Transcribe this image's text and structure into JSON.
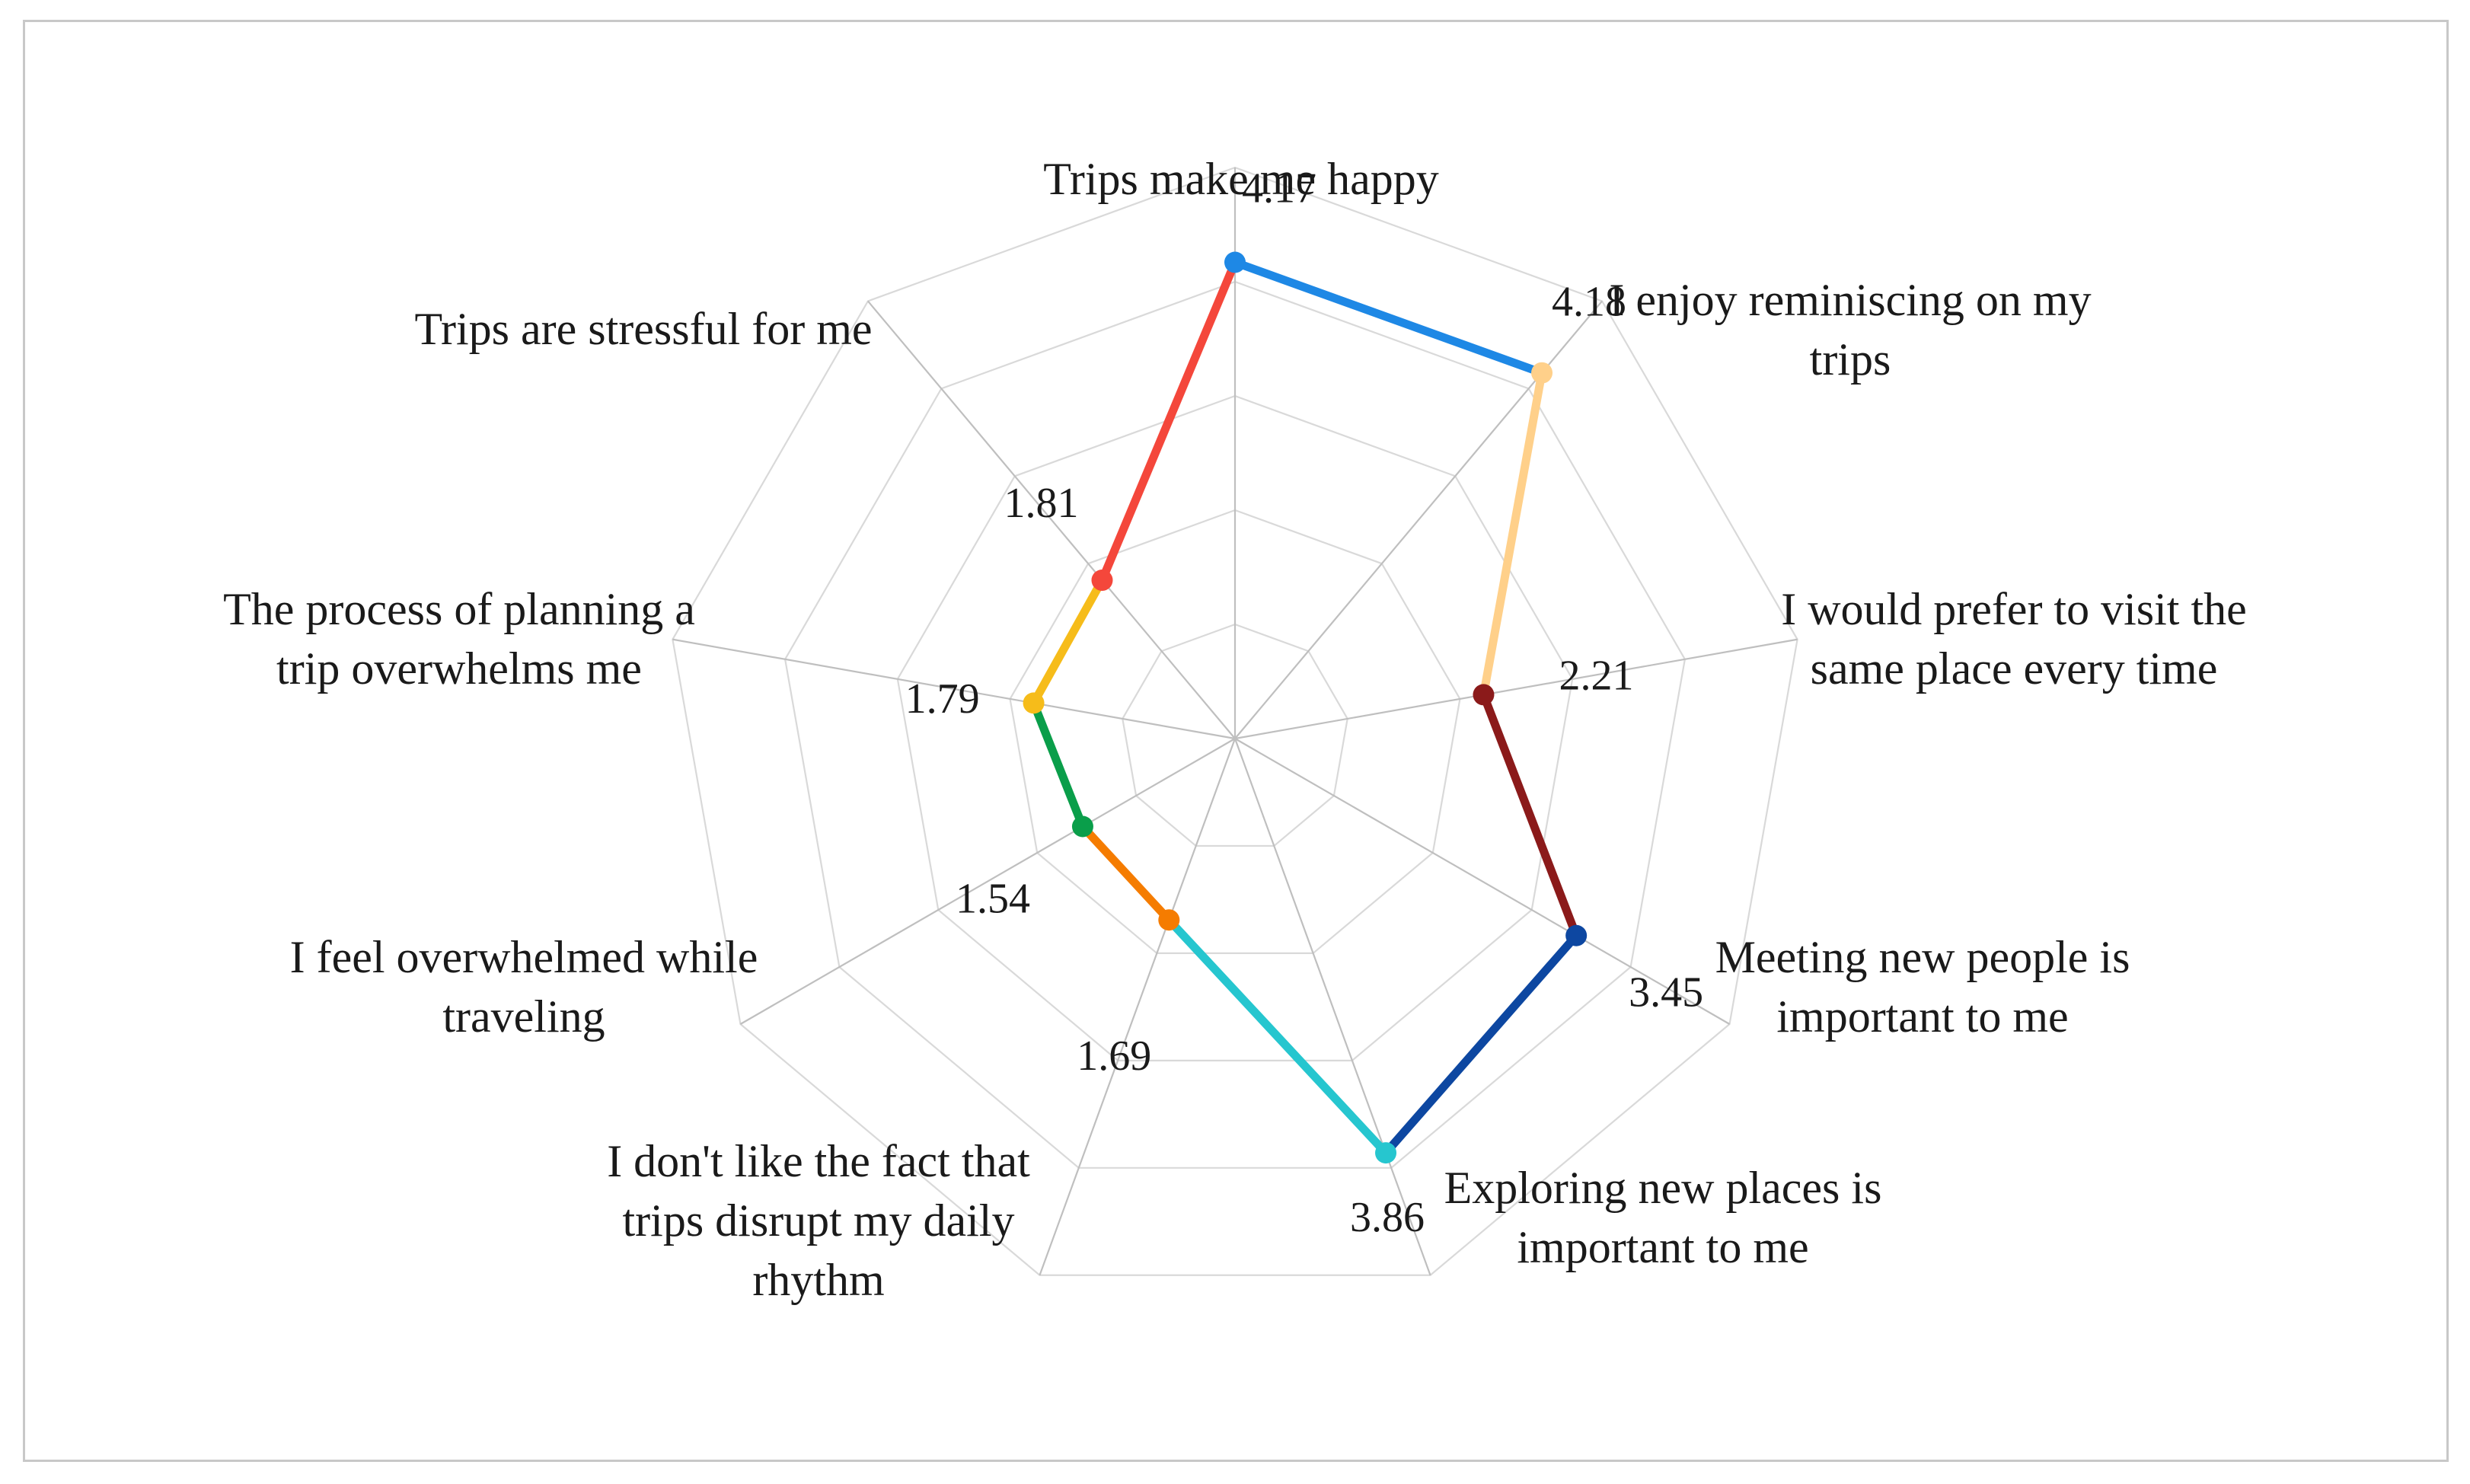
{
  "chart_data": {
    "type": "radar",
    "title": "",
    "categories": [
      "Trips make me happy",
      "I enjoy reminiscing on my trips",
      "I would prefer to visit the same place every time",
      "Meeting new people is important to me",
      "Exploring new places is important to me",
      "I don't like the fact that trips disrupt my daily rhythm",
      "I feel overwhelmed while traveling",
      "The process of planning a trip overwhelms me",
      "Trips are stressful for me"
    ],
    "category_label_lines": [
      [
        "Trips make me happy"
      ],
      [
        "I enjoy reminiscing on my",
        "trips"
      ],
      [
        "I would prefer to visit the",
        "same place every time"
      ],
      [
        "Meeting new people is",
        "important to me"
      ],
      [
        "Exploring new places is",
        "important to me"
      ],
      [
        "I don't like the fact that",
        "trips disrupt my daily",
        "rhythm"
      ],
      [
        "I feel overwhelmed while",
        "traveling"
      ],
      [
        "The process of planning a",
        "trip overwhelms me"
      ],
      [
        "Trips are stressful for me"
      ]
    ],
    "values": [
      4.17,
      4.18,
      2.21,
      3.45,
      3.86,
      1.69,
      1.54,
      1.79,
      1.81
    ],
    "value_labels": [
      "4.17",
      "4.18",
      "2.21",
      "3.45",
      "3.86",
      "1.69",
      "1.54",
      "1.79",
      "1.81"
    ],
    "point_colors": [
      "#1e88e5",
      "#ffd08a",
      "#8b1a1a",
      "#0d47a1",
      "#26c6cf",
      "#f57c00",
      "#0a9e4a",
      "#f6bc1a",
      "#f4473b"
    ],
    "segment_colors": [
      "#1e88e5",
      "#ffd08a",
      "#8b1a1a",
      "#0d47a1",
      "#26c6cf",
      "#f57c00",
      "#0a9e4a",
      "#f6bc1a",
      "#f4473b"
    ],
    "rlim": [
      0,
      5
    ],
    "grid": true,
    "gridline_color": "#d9d9d9",
    "spoke_color": "#bfbfbf",
    "legend": "none"
  }
}
